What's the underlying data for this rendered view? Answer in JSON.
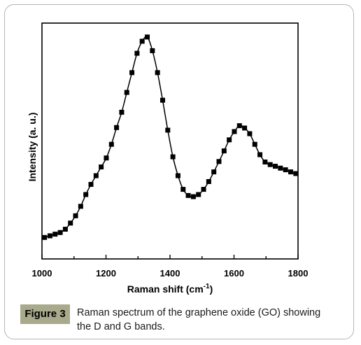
{
  "caption": {
    "tag": "Figure 3",
    "line1": "Raman spectrum of the graphene oxide (GO) showing",
    "line2": "the D and G bands."
  },
  "chart_data": {
    "type": "line",
    "xlabel": "Raman shift (cm",
    "xlabel_sup": "-1",
    "xlabel_close": ")",
    "ylabel": "Intensity (a. u.)",
    "xlim": [
      1000,
      1800
    ],
    "ylim": [
      0,
      100
    ],
    "xticks": [
      1000,
      1200,
      1400,
      1600,
      1800
    ],
    "grid": false,
    "marker": "square",
    "color": "#000000",
    "x": [
      1008,
      1025,
      1041,
      1057,
      1073,
      1089,
      1105,
      1121,
      1137,
      1153,
      1169,
      1185,
      1201,
      1217,
      1233,
      1249,
      1265,
      1281,
      1297,
      1313,
      1329,
      1345,
      1361,
      1377,
      1393,
      1409,
      1425,
      1441,
      1457,
      1473,
      1489,
      1505,
      1521,
      1537,
      1553,
      1569,
      1585,
      1601,
      1617,
      1633,
      1649,
      1665,
      1681,
      1697,
      1713,
      1729,
      1745,
      1761,
      1777,
      1793
    ],
    "y": [
      9.1,
      9.8,
      10.5,
      11.2,
      12.6,
      15.2,
      18.3,
      22.3,
      27.3,
      31.6,
      35.3,
      39.0,
      42.8,
      48.6,
      55.7,
      62.2,
      70.6,
      79.0,
      87.2,
      92.3,
      94.1,
      88.3,
      79.0,
      67.3,
      54.6,
      43.3,
      35.3,
      29.5,
      26.9,
      26.4,
      27.3,
      29.5,
      32.8,
      36.9,
      41.3,
      45.8,
      50.5,
      54.0,
      56.5,
      55.5,
      53.1,
      48.6,
      44.2,
      41.1,
      40.0,
      39.3,
      38.5,
      37.8,
      36.9,
      36.2
    ]
  }
}
